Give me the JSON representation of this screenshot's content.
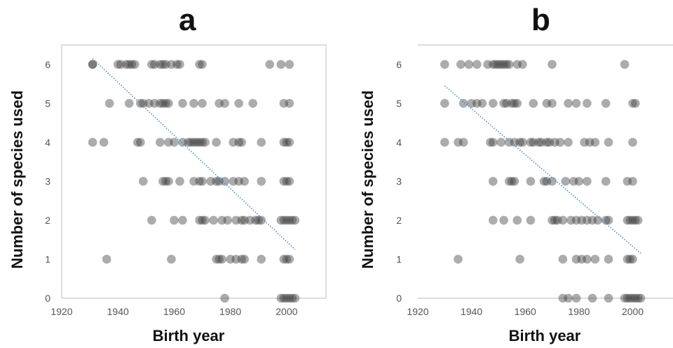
{
  "chart_data": [
    {
      "panel": "a",
      "type": "scatter",
      "xlabel": "Birth year",
      "ylabel": "Number of species used",
      "xlim": [
        1920,
        2014
      ],
      "ylim": [
        0,
        6.5
      ],
      "xticks": [
        1920,
        1940,
        1960,
        1980,
        2000
      ],
      "yticks": [
        0,
        1,
        2,
        3,
        4,
        5,
        6
      ],
      "trendline": {
        "x": [
          1931,
          2003
        ],
        "y": [
          6.15,
          1.25
        ],
        "color": "#4a8fc9"
      },
      "point_color": "#3a3a3a",
      "points": {
        "6": [
          1931,
          1931,
          1940,
          1941,
          1943,
          1944,
          1945,
          1946,
          1952,
          1953,
          1955,
          1956,
          1957,
          1959,
          1961,
          1962,
          1969,
          1970,
          1994,
          1998,
          2001
        ],
        "5": [
          1937,
          1944,
          1948,
          1949,
          1951,
          1953,
          1955,
          1956,
          1957,
          1958,
          1963,
          1967,
          1970,
          1976,
          1978,
          1983,
          1988,
          1999,
          2001
        ],
        "4": [
          1931,
          1935,
          1947,
          1948,
          1955,
          1958,
          1960,
          1963,
          1965,
          1966,
          1967,
          1968,
          1969,
          1970,
          1971,
          1975,
          1981,
          1983,
          1984,
          1991,
          1999,
          2000,
          2001
        ],
        "3": [
          1949,
          1956,
          1957,
          1958,
          1962,
          1967,
          1969,
          1970,
          1973,
          1975,
          1976,
          1978,
          1981,
          1983,
          1985,
          1991,
          1999,
          2000,
          2001
        ],
        "2": [
          1952,
          1960,
          1963,
          1969,
          1970,
          1971,
          1974,
          1977,
          1979,
          1982,
          1984,
          1985,
          1987,
          1989,
          1990,
          1991,
          1998,
          1999,
          2000,
          2001,
          2002,
          2003
        ],
        "1": [
          1936,
          1959,
          1975,
          1976,
          1977,
          1980,
          1982,
          1984,
          1985,
          1991,
          1999,
          2000,
          2001
        ],
        "0": [
          1978,
          1998,
          1999,
          2000,
          2001,
          2002,
          2003
        ]
      }
    },
    {
      "panel": "b",
      "type": "scatter",
      "xlabel": "Birth year",
      "ylabel": "Number of species used",
      "xlim": [
        1920,
        2015
      ],
      "ylim": [
        0,
        6.5
      ],
      "xticks": [
        1920,
        1940,
        1960,
        1980,
        2000
      ],
      "yticks": [
        0,
        1,
        2,
        3,
        4,
        5,
        6
      ],
      "trendline": {
        "x": [
          1930,
          2003
        ],
        "y": [
          5.45,
          1.15
        ],
        "color": "#4a8fc9"
      },
      "point_color": "#3a3a3a",
      "points": {
        "6": [
          1930,
          1936,
          1939,
          1942,
          1946,
          1948,
          1949,
          1950,
          1951,
          1952,
          1953,
          1954,
          1957,
          1959,
          1970,
          1997
        ],
        "5": [
          1930,
          1937,
          1940,
          1942,
          1944,
          1948,
          1952,
          1953,
          1955,
          1956,
          1957,
          1963,
          1968,
          1970,
          1976,
          1979,
          1983,
          1990,
          2000,
          2001
        ],
        "4": [
          1930,
          1935,
          1937,
          1947,
          1948,
          1951,
          1954,
          1956,
          1958,
          1959,
          1962,
          1963,
          1965,
          1966,
          1968,
          1969,
          1971,
          1973,
          1976,
          1982,
          1984,
          1986,
          1991,
          2000
        ],
        "3": [
          1948,
          1954,
          1955,
          1956,
          1962,
          1967,
          1968,
          1970,
          1975,
          1978,
          1980,
          1983,
          1990,
          1998,
          2000
        ],
        "2": [
          1948,
          1952,
          1957,
          1962,
          1970,
          1971,
          1972,
          1974,
          1977,
          1979,
          1981,
          1983,
          1985,
          1987,
          1990,
          1991,
          1998,
          1999,
          2000,
          2001,
          2002
        ],
        "1": [
          1935,
          1958,
          1974,
          1979,
          1981,
          1983,
          1986,
          1991,
          1998,
          1999,
          2000
        ],
        "0": [
          1974,
          1976,
          1979,
          1985,
          1991,
          1997,
          1998,
          1999,
          2000,
          2001,
          2002,
          2003
        ]
      }
    }
  ]
}
